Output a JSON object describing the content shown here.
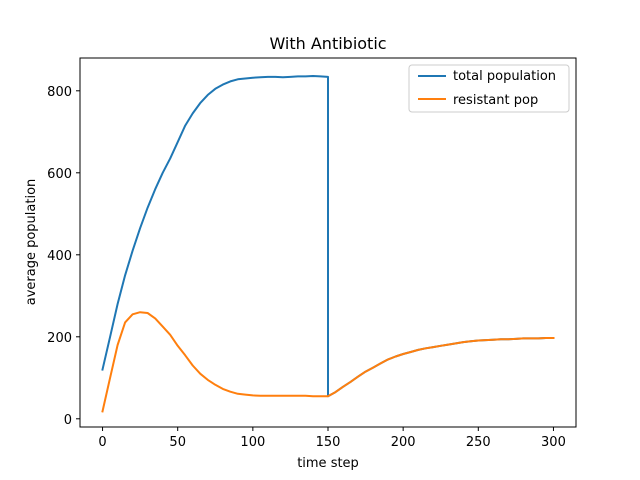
{
  "chart_data": {
    "type": "line",
    "title": "With Antibiotic",
    "xlabel": "time step",
    "ylabel": "average population",
    "xlim": [
      -15,
      315
    ],
    "ylim": [
      -20,
      880
    ],
    "xticks": [
      0,
      50,
      100,
      150,
      200,
      250,
      300
    ],
    "yticks": [
      0,
      200,
      400,
      600,
      800
    ],
    "grid": false,
    "legend_position": "top-right",
    "series": [
      {
        "name": "total population",
        "color": "#1f77b4",
        "x": [
          0,
          5,
          10,
          15,
          20,
          25,
          30,
          35,
          40,
          45,
          50,
          55,
          60,
          65,
          70,
          75,
          80,
          85,
          90,
          95,
          100,
          105,
          110,
          115,
          120,
          125,
          130,
          135,
          140,
          145,
          150,
          150,
          155,
          160,
          165,
          170,
          175,
          180,
          185,
          190,
          195,
          200,
          205,
          210,
          215,
          220,
          225,
          230,
          235,
          240,
          245,
          250,
          255,
          260,
          265,
          270,
          275,
          280,
          285,
          290,
          295,
          300
        ],
        "values": [
          120,
          200,
          280,
          350,
          410,
          465,
          515,
          560,
          600,
          635,
          675,
          715,
          745,
          770,
          790,
          805,
          815,
          823,
          828,
          830,
          832,
          833,
          834,
          834,
          833,
          834,
          835,
          835,
          836,
          835,
          834,
          55,
          65,
          78,
          90,
          103,
          115,
          125,
          135,
          145,
          152,
          158,
          163,
          168,
          172,
          175,
          178,
          181,
          184,
          187,
          189,
          191,
          192,
          193,
          194,
          194,
          195,
          196,
          196,
          196,
          197,
          197
        ]
      },
      {
        "name": "resistant pop",
        "color": "#ff7f0e",
        "x": [
          0,
          5,
          10,
          15,
          20,
          25,
          30,
          35,
          40,
          45,
          50,
          55,
          60,
          65,
          70,
          75,
          80,
          85,
          90,
          95,
          100,
          105,
          110,
          115,
          120,
          125,
          130,
          135,
          140,
          145,
          150,
          155,
          160,
          165,
          170,
          175,
          180,
          185,
          190,
          195,
          200,
          205,
          210,
          215,
          220,
          225,
          230,
          235,
          240,
          245,
          250,
          255,
          260,
          265,
          270,
          275,
          280,
          285,
          290,
          295,
          300
        ],
        "values": [
          18,
          100,
          180,
          235,
          255,
          260,
          258,
          245,
          225,
          205,
          178,
          155,
          130,
          110,
          95,
          83,
          73,
          66,
          61,
          59,
          57,
          56,
          56,
          56,
          56,
          56,
          56,
          56,
          55,
          55,
          55,
          65,
          78,
          90,
          103,
          115,
          125,
          135,
          145,
          152,
          158,
          163,
          168,
          172,
          175,
          178,
          181,
          184,
          187,
          189,
          191,
          192,
          193,
          194,
          194,
          195,
          196,
          196,
          196,
          197,
          197
        ]
      }
    ]
  }
}
